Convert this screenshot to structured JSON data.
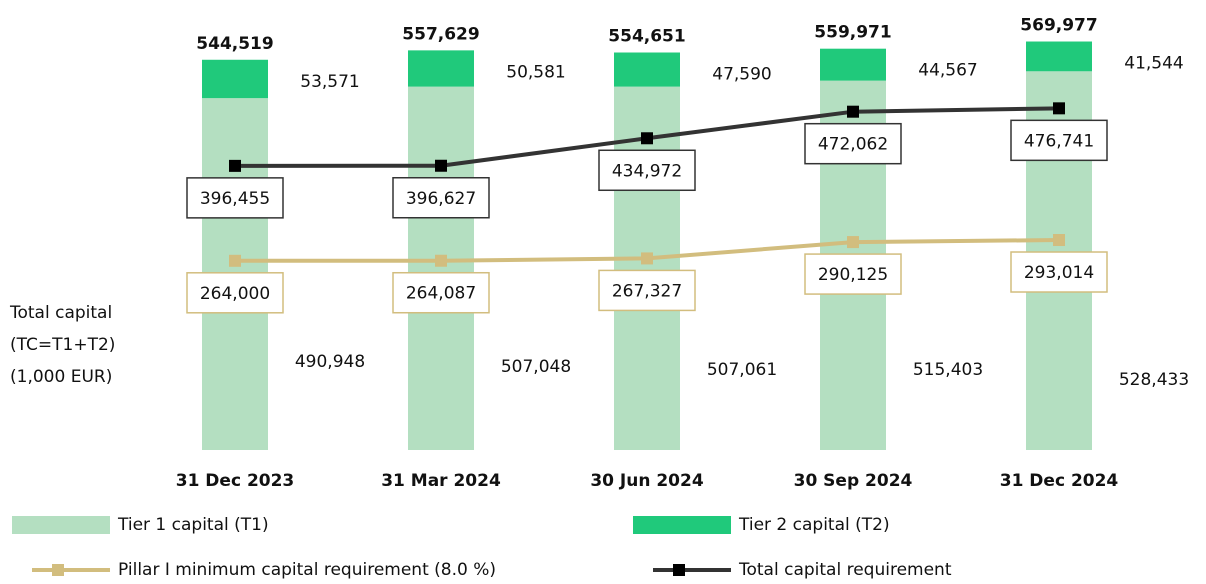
{
  "chart_data": {
    "type": "bar",
    "stacked": true,
    "ylabel_lines": [
      "Total capital",
      "(TC=T1+T2)",
      "(1,000 EUR)"
    ],
    "categories": [
      "31 Dec 2023",
      "31 Mar 2024",
      "30 Jun 2024",
      "30 Sep 2024",
      "31 Dec 2024"
    ],
    "ylim": [
      0,
      600000
    ],
    "legend": "bottom",
    "series": [
      {
        "name": "Tier 1 capital (T1)",
        "type": "bar",
        "color": "#b4dfc1",
        "values": [
          490948,
          507048,
          507061,
          515403,
          528433
        ],
        "value_labels": [
          "490,948",
          "507,048",
          "507,061",
          "515,403",
          "528,433"
        ]
      },
      {
        "name": "Tier 2 capital (T2)",
        "type": "bar",
        "color": "#20c97b",
        "values": [
          53571,
          50581,
          47590,
          44567,
          41544
        ],
        "value_labels": [
          "53,571",
          "50,581",
          "47,590",
          "44,567",
          "41,544"
        ]
      },
      {
        "name": "Pillar I minimum capital requirement (8.0 %)",
        "type": "line",
        "color": "#d2bd7e",
        "values": [
          264000,
          264087,
          267327,
          290125,
          293014
        ],
        "value_labels": [
          "264,000",
          "264,087",
          "267,327",
          "290,125",
          "293,014"
        ]
      },
      {
        "name": "Total capital requirement",
        "type": "line",
        "color": "#333333",
        "values": [
          396455,
          396627,
          434972,
          472062,
          476741
        ],
        "value_labels": [
          "396,455",
          "396,627",
          "434,972",
          "472,062",
          "476,741"
        ]
      }
    ],
    "totals": [
      544519,
      557629,
      554651,
      559971,
      569977
    ],
    "totals_labels": [
      "544,519",
      "557,629",
      "554,651",
      "559,971",
      "569,977"
    ]
  }
}
